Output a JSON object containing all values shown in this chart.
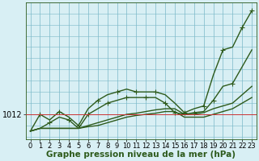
{
  "xlabel": "Graphe pression niveau de la mer (hPa)",
  "hours": [
    0,
    1,
    2,
    3,
    4,
    5,
    6,
    7,
    8,
    9,
    10,
    11,
    12,
    13,
    14,
    15,
    16,
    17,
    18,
    19,
    20,
    21,
    22,
    23
  ],
  "line_top": [
    1009.0,
    1012.0,
    1011.0,
    1012.5,
    1011.5,
    1010.0,
    1013.0,
    1014.5,
    1015.5,
    1016.0,
    1016.5,
    1016.0,
    1016.0,
    1016.0,
    1015.5,
    1014.0,
    1012.3,
    1013.0,
    1013.5,
    1019.0,
    1023.5,
    1024.0,
    1027.5,
    1030.5
  ],
  "line_mid": [
    1009.0,
    1009.5,
    1010.5,
    1011.5,
    1011.0,
    1009.5,
    1012.0,
    1013.0,
    1014.0,
    1014.5,
    1015.0,
    1015.0,
    1015.0,
    1015.0,
    1014.0,
    1012.3,
    1012.0,
    1012.3,
    1012.5,
    1014.5,
    1017.0,
    1017.5,
    1020.5,
    1023.5
  ],
  "line_low1": [
    1009.0,
    1009.5,
    1009.5,
    1009.5,
    1009.5,
    1009.5,
    1010.0,
    1010.5,
    1011.0,
    1011.5,
    1012.0,
    1012.2,
    1012.5,
    1012.8,
    1013.0,
    1013.0,
    1012.0,
    1012.0,
    1012.3,
    1013.0,
    1013.5,
    1014.0,
    1015.5,
    1017.0
  ],
  "line_low2": [
    1009.0,
    1009.5,
    1009.5,
    1009.5,
    1009.5,
    1009.5,
    1009.8,
    1010.0,
    1010.5,
    1011.0,
    1011.5,
    1011.8,
    1012.0,
    1012.2,
    1012.5,
    1012.5,
    1011.5,
    1011.5,
    1011.5,
    1012.0,
    1012.5,
    1013.0,
    1014.0,
    1015.0
  ],
  "hline_value": 1012,
  "ylim": [
    1007.5,
    1032.0
  ],
  "xlim": [
    -0.5,
    23.5
  ],
  "line_color": "#2d5a1b",
  "hline_color": "#cc3333",
  "bg_color": "#d8eff4",
  "grid_color": "#7ab8c8",
  "border_color": "#2d5a1b",
  "markersize": 4,
  "linewidth": 1.0,
  "xlabel_fontsize": 7.5,
  "tick_fontsize": 6
}
